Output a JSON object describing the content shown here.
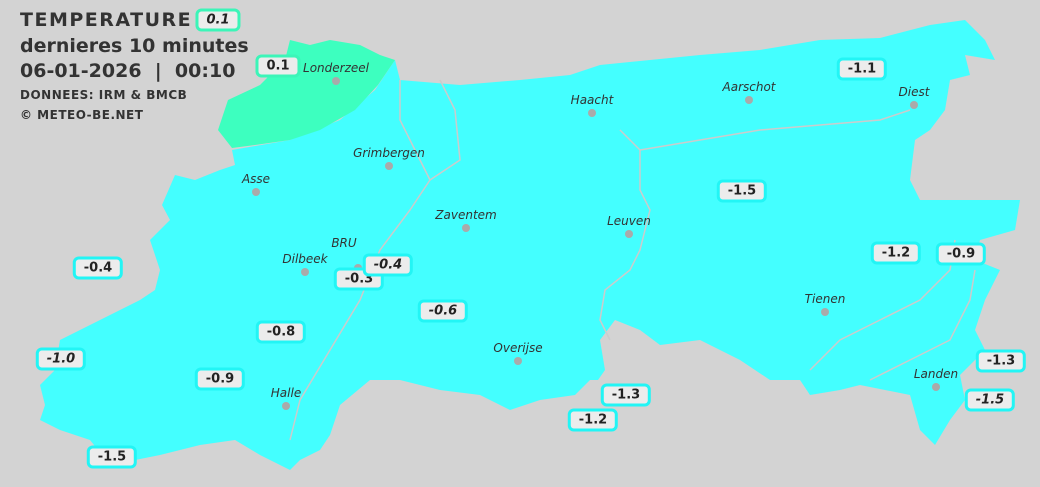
{
  "header": {
    "title": "TEMPERATURE",
    "subtitle": "dernieres 10 minutes",
    "datetime": "06-01-2026  |  00:10",
    "source": "DONNEES: IRM & BMCB",
    "copyright": "© METEO-BE.NET"
  },
  "colors": {
    "background": "#d3d3d3",
    "zone_cold": "#44ffff",
    "zone_mild": "#3dffbf",
    "badge_border": "#22f5f5"
  },
  "cities": [
    "Londerzeel",
    "Haacht",
    "Aarschot",
    "Diest",
    "Grimbergen",
    "Asse",
    "Zaventem",
    "Leuven",
    "Dilbeek",
    "BRU",
    "Tienen",
    "Overijse",
    "Halle",
    "Landen"
  ],
  "stations": [
    {
      "value": "0.1",
      "italic": true,
      "zone": "mild"
    },
    {
      "value": "0.1",
      "italic": false,
      "zone": "mild"
    },
    {
      "value": "-1.1",
      "italic": false,
      "zone": "cold"
    },
    {
      "value": "-1.5",
      "italic": false,
      "zone": "cold"
    },
    {
      "value": "-1.2",
      "italic": false,
      "zone": "cold"
    },
    {
      "value": "-0.9",
      "italic": false,
      "zone": "cold"
    },
    {
      "value": "-0.4",
      "italic": false,
      "zone": "cold"
    },
    {
      "value": "-0.3",
      "italic": false,
      "zone": "cold"
    },
    {
      "value": "-0.4",
      "italic": true,
      "zone": "cold"
    },
    {
      "value": "-0.6",
      "italic": true,
      "zone": "cold"
    },
    {
      "value": "-0.8",
      "italic": false,
      "zone": "cold"
    },
    {
      "value": "-1.0",
      "italic": true,
      "zone": "cold"
    },
    {
      "value": "-0.9",
      "italic": false,
      "zone": "cold"
    },
    {
      "value": "-1.5",
      "italic": false,
      "zone": "cold"
    },
    {
      "value": "-1.3",
      "italic": false,
      "zone": "cold"
    },
    {
      "value": "-1.2",
      "italic": false,
      "zone": "cold"
    },
    {
      "value": "-1.3",
      "italic": false,
      "zone": "cold"
    },
    {
      "value": "-1.5",
      "italic": true,
      "zone": "cold"
    }
  ]
}
